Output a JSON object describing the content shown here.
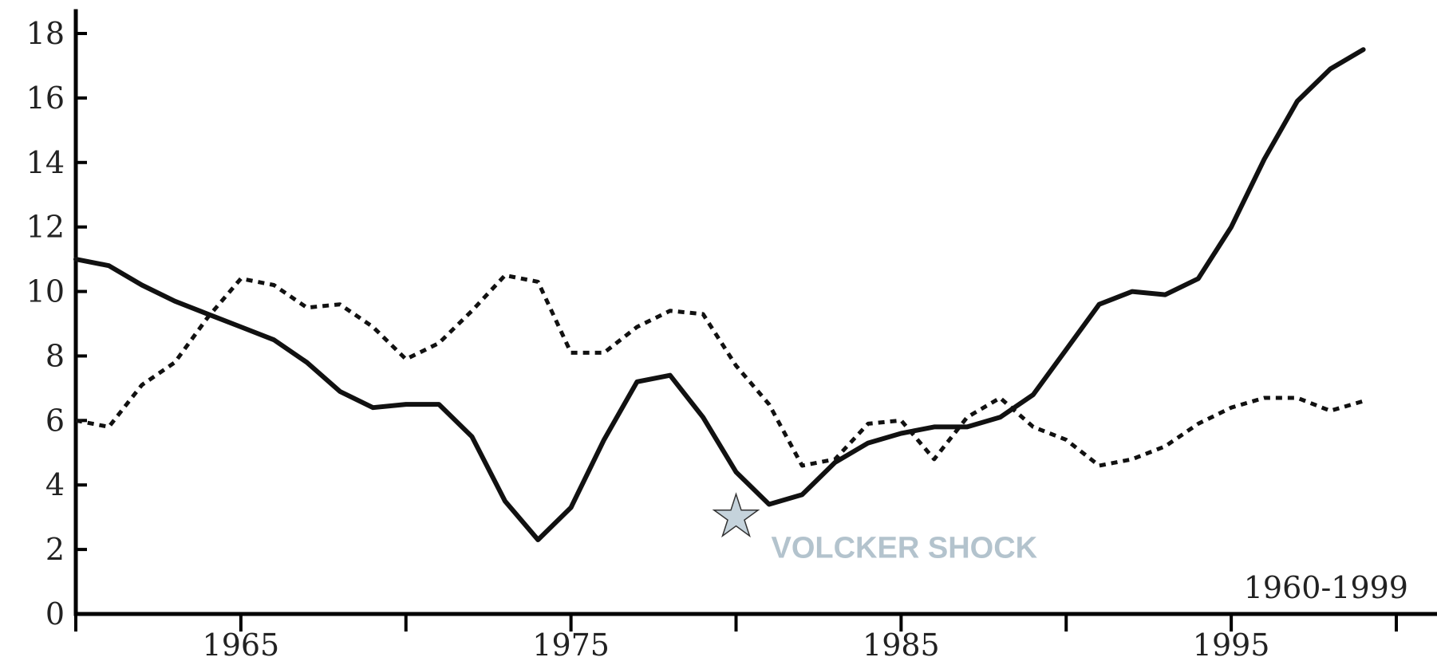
{
  "chart_data": {
    "type": "line",
    "title": "",
    "xlabel": "",
    "ylabel": "",
    "xlim": [
      1960,
      2000
    ],
    "ylim": [
      0,
      18
    ],
    "x_ticks": [
      1960,
      1965,
      1970,
      1975,
      1980,
      1985,
      1990,
      1995,
      2000
    ],
    "x_tick_labels": [
      "1965",
      "1975",
      "1985",
      "1995"
    ],
    "x_tick_label_years": [
      1965,
      1975,
      1985,
      1995
    ],
    "y_ticks": [
      0,
      2,
      4,
      6,
      8,
      10,
      12,
      14,
      16,
      18
    ],
    "y_tick_labels": [
      "0",
      "2",
      "4",
      "6",
      "8",
      "10",
      "12",
      "14",
      "16",
      "18"
    ],
    "grid": false,
    "legend": "none",
    "range_label": "1960-1999",
    "series": [
      {
        "style": "solid",
        "color": "#111111",
        "x": [
          1960,
          1961,
          1962,
          1963,
          1964,
          1965,
          1966,
          1967,
          1968,
          1969,
          1970,
          1971,
          1972,
          1973,
          1974,
          1975,
          1976,
          1977,
          1978,
          1979,
          1980,
          1981,
          1982,
          1983,
          1984,
          1985,
          1986,
          1987,
          1988,
          1989,
          1990,
          1991,
          1992,
          1993,
          1994,
          1995,
          1996,
          1997,
          1998,
          1999
        ],
        "values": [
          11.0,
          10.8,
          10.2,
          9.7,
          9.3,
          8.9,
          8.5,
          7.8,
          6.9,
          6.4,
          6.5,
          6.5,
          5.5,
          3.5,
          2.3,
          3.3,
          5.4,
          7.2,
          7.4,
          6.1,
          4.4,
          3.4,
          3.7,
          4.7,
          5.3,
          5.6,
          5.8,
          5.8,
          6.1,
          6.8,
          8.2,
          9.6,
          10.0,
          9.9,
          10.4,
          12.0,
          14.1,
          15.9,
          16.9,
          17.5
        ]
      },
      {
        "style": "dashed",
        "color": "#111111",
        "x": [
          1960,
          1961,
          1962,
          1963,
          1964,
          1965,
          1966,
          1967,
          1968,
          1969,
          1970,
          1971,
          1972,
          1973,
          1974,
          1975,
          1976,
          1977,
          1978,
          1979,
          1980,
          1981,
          1982,
          1983,
          1984,
          1985,
          1986,
          1987,
          1988,
          1989,
          1990,
          1991,
          1992,
          1993,
          1994,
          1995,
          1996,
          1997,
          1998,
          1999
        ],
        "values": [
          6.0,
          5.8,
          7.1,
          7.8,
          9.2,
          10.4,
          10.2,
          9.5,
          9.6,
          8.9,
          7.9,
          8.4,
          9.4,
          10.5,
          10.3,
          8.1,
          8.1,
          8.9,
          9.4,
          9.3,
          7.7,
          6.5,
          4.6,
          4.8,
          5.9,
          6.0,
          4.8,
          6.1,
          6.7,
          5.8,
          5.4,
          4.6,
          4.8,
          5.2,
          5.9,
          6.4,
          6.7,
          6.7,
          6.3,
          6.6
        ]
      }
    ],
    "annotations": [
      {
        "text": "VOLCKER SHOCK",
        "marker": "star-icon",
        "x": 1980,
        "y": 3.0,
        "color": "#b3c3cd",
        "marker_fill": "#c5d3dc",
        "marker_stroke": "#333333"
      }
    ]
  }
}
